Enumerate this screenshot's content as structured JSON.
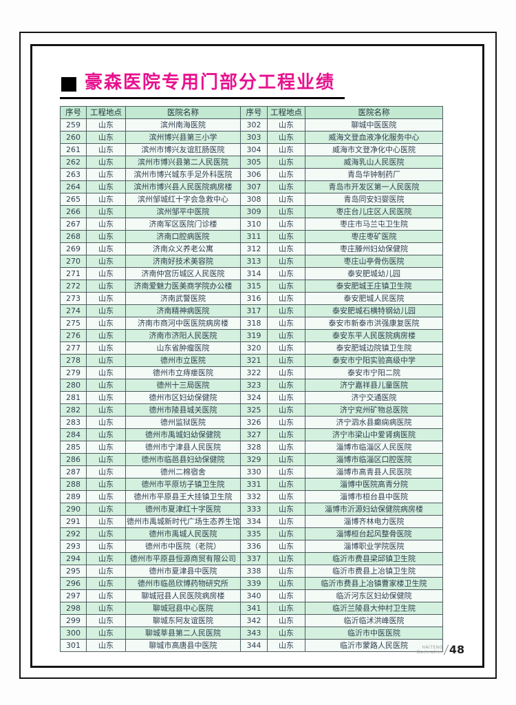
{
  "page": {
    "title": "豪森医院专用门部分工程业绩",
    "footer_brand_line1": "HAITENG",
    "footer_brand_line2": "Decoration",
    "page_number": "48"
  },
  "colors": {
    "title_accent": "#e7118e",
    "header_bg": "#c3e9d2",
    "row_even_bg": "#d4f0de",
    "row_odd_bg": "#f4fbf7",
    "frame": "#141414"
  },
  "table": {
    "headers": [
      "序号",
      "工程地点",
      "医院名称"
    ],
    "left_rows": [
      {
        "no": "259",
        "loc": "山东",
        "name": "滨州南海医院"
      },
      {
        "no": "260",
        "loc": "山东",
        "name": "滨州博兴县第三小学"
      },
      {
        "no": "261",
        "loc": "山东",
        "name": "滨州市博兴友谊肛肠医院"
      },
      {
        "no": "262",
        "loc": "山东",
        "name": "滨州市博兴县第二人民医院"
      },
      {
        "no": "263",
        "loc": "山东",
        "name": "滨州市博兴城东手足外科医院"
      },
      {
        "no": "264",
        "loc": "山东",
        "name": "滨州市博兴县人民医院病房楼"
      },
      {
        "no": "265",
        "loc": "山东",
        "name": "滨州邹城红十字会急救中心"
      },
      {
        "no": "266",
        "loc": "山东",
        "name": "滨州邹平中医院"
      },
      {
        "no": "267",
        "loc": "山东",
        "name": "济南军区医院门诊楼"
      },
      {
        "no": "268",
        "loc": "山东",
        "name": "济南口腔病医院"
      },
      {
        "no": "269",
        "loc": "山东",
        "name": "济南众义养老公寓"
      },
      {
        "no": "270",
        "loc": "山东",
        "name": "济南好技术美容院"
      },
      {
        "no": "271",
        "loc": "山东",
        "name": "济南仲宫历城区人民医院"
      },
      {
        "no": "272",
        "loc": "山东",
        "name": "济南爱魅力医美商学院办公楼"
      },
      {
        "no": "273",
        "loc": "山东",
        "name": "济南武警医院"
      },
      {
        "no": "274",
        "loc": "山东",
        "name": "济南精神病医院"
      },
      {
        "no": "275",
        "loc": "山东",
        "name": "济南市商河中医医院病房楼"
      },
      {
        "no": "276",
        "loc": "山东",
        "name": "济南市济阳人民医院"
      },
      {
        "no": "277",
        "loc": "山东",
        "name": "山东省肿瘤医院"
      },
      {
        "no": "278",
        "loc": "山东",
        "name": "德州市立医院"
      },
      {
        "no": "279",
        "loc": "山东",
        "name": "德州市立痔瘘医院"
      },
      {
        "no": "280",
        "loc": "山东",
        "name": "德州十三局医院"
      },
      {
        "no": "281",
        "loc": "山东",
        "name": "德州市区妇幼保健院"
      },
      {
        "no": "282",
        "loc": "山东",
        "name": "德州市陵县城关医院"
      },
      {
        "no": "283",
        "loc": "山东",
        "name": "德州监狱医院"
      },
      {
        "no": "284",
        "loc": "山东",
        "name": "德州市禹城妇幼保健院"
      },
      {
        "no": "285",
        "loc": "山东",
        "name": "德州市宁津县人民医院"
      },
      {
        "no": "286",
        "loc": "山东",
        "name": "德州市临邑县妇幼保健院"
      },
      {
        "no": "287",
        "loc": "山东",
        "name": "德州二棉宿舍"
      },
      {
        "no": "288",
        "loc": "山东",
        "name": "德州市平原坊子镇卫生院"
      },
      {
        "no": "289",
        "loc": "山东",
        "name": "德州市平原县王大挂镇卫生院"
      },
      {
        "no": "290",
        "loc": "山东",
        "name": "德州市夏津红十字医院"
      },
      {
        "no": "291",
        "loc": "山东",
        "name": "德州市禹城新时代广场生态养生馆"
      },
      {
        "no": "292",
        "loc": "山东",
        "name": "德州市禹城人民医院"
      },
      {
        "no": "293",
        "loc": "山东",
        "name": "德州市中医院（老院）"
      },
      {
        "no": "294",
        "loc": "山东",
        "name": "德州市平原县恒源商贸有限公司"
      },
      {
        "no": "295",
        "loc": "山东",
        "name": "德州市夏津县中医院"
      },
      {
        "no": "296",
        "loc": "山东",
        "name": "德州市临邑欣博药物研究所"
      },
      {
        "no": "297",
        "loc": "山东",
        "name": "聊城冠县人民医院病房楼"
      },
      {
        "no": "298",
        "loc": "山东",
        "name": "聊城冠县中心医院"
      },
      {
        "no": "299",
        "loc": "山东",
        "name": "聊城东阿友谊医院"
      },
      {
        "no": "300",
        "loc": "山东",
        "name": "聊城莘县第二人民医院"
      },
      {
        "no": "301",
        "loc": "山东",
        "name": "聊城市高唐县中医院"
      }
    ],
    "right_rows": [
      {
        "no": "302",
        "loc": "山东",
        "name": "聊城中医医院"
      },
      {
        "no": "303",
        "loc": "山东",
        "name": "威海文登血液净化服务中心"
      },
      {
        "no": "304",
        "loc": "山东",
        "name": "威海市文登净化中心医院"
      },
      {
        "no": "305",
        "loc": "山东",
        "name": "威海乳山人民医院"
      },
      {
        "no": "306",
        "loc": "山东",
        "name": "青岛华钟制药厂"
      },
      {
        "no": "307",
        "loc": "山东",
        "name": "青岛市开发区第一人民医院"
      },
      {
        "no": "308",
        "loc": "山东",
        "name": "青岛同安妇婴医院"
      },
      {
        "no": "309",
        "loc": "山东",
        "name": "枣庄台儿庄区人民医院"
      },
      {
        "no": "310",
        "loc": "山东",
        "name": "枣庄市马兰屯卫生院"
      },
      {
        "no": "311",
        "loc": "山东",
        "name": "枣庄枣矿医院"
      },
      {
        "no": "312",
        "loc": "山东",
        "name": "枣庄滕州妇幼保健院"
      },
      {
        "no": "313",
        "loc": "山东",
        "name": "枣庄山亭骨伤医院"
      },
      {
        "no": "314",
        "loc": "山东",
        "name": "泰安肥城幼儿园"
      },
      {
        "no": "315",
        "loc": "山东",
        "name": "泰安肥城王庄镇卫生院"
      },
      {
        "no": "316",
        "loc": "山东",
        "name": "泰安肥城人民医院"
      },
      {
        "no": "317",
        "loc": "山东",
        "name": "泰安肥城石横特钢幼儿园"
      },
      {
        "no": "318",
        "loc": "山东",
        "name": "泰安市新泰市洪强康复医院"
      },
      {
        "no": "319",
        "loc": "山东",
        "name": "泰安东平人民医院病房楼"
      },
      {
        "no": "320",
        "loc": "山东",
        "name": "泰安肥城边院镇卫生院"
      },
      {
        "no": "321",
        "loc": "山东",
        "name": "泰安市宁阳实验高级中学"
      },
      {
        "no": "322",
        "loc": "山东",
        "name": "泰安市宁阳二院"
      },
      {
        "no": "323",
        "loc": "山东",
        "name": "济宁嘉祥县儿童医院"
      },
      {
        "no": "324",
        "loc": "山东",
        "name": "济宁交通医院"
      },
      {
        "no": "325",
        "loc": "山东",
        "name": "济宁兖州矿物总医院"
      },
      {
        "no": "326",
        "loc": "山东",
        "name": "济宁泗水县癫痫病医院"
      },
      {
        "no": "327",
        "loc": "山东",
        "name": "济宁市梁山中爱肾病医院"
      },
      {
        "no": "328",
        "loc": "山东",
        "name": "淄博市临淄区人民医院"
      },
      {
        "no": "329",
        "loc": "山东",
        "name": "淄博市临淄区口腔医院"
      },
      {
        "no": "330",
        "loc": "山东",
        "name": "淄博市高青县人民医院"
      },
      {
        "no": "331",
        "loc": "山东",
        "name": "淄博中医院高青分院"
      },
      {
        "no": "332",
        "loc": "山东",
        "name": "淄博市桓台县中医院"
      },
      {
        "no": "333",
        "loc": "山东",
        "name": "淄博市沂源妇幼保健院病房楼"
      },
      {
        "no": "334",
        "loc": "山东",
        "name": "淄博齐林电力医院"
      },
      {
        "no": "335",
        "loc": "山东",
        "name": "淄博桓台起风整骨医院"
      },
      {
        "no": "336",
        "loc": "山东",
        "name": "淄博职业学院医院"
      },
      {
        "no": "337",
        "loc": "山东",
        "name": "临沂市费县梁邱镇卫生院"
      },
      {
        "no": "338",
        "loc": "山东",
        "name": "临沂市费县上冶镇卫生院"
      },
      {
        "no": "339",
        "loc": "山东",
        "name": "临沂市费县上冶镇曹家楼卫生院"
      },
      {
        "no": "340",
        "loc": "山东",
        "name": "临沂河东区妇幼保健院"
      },
      {
        "no": "341",
        "loc": "山东",
        "name": "临沂兰陵县大仲村卫生院"
      },
      {
        "no": "342",
        "loc": "山东",
        "name": "临沂临沭洪峰医院"
      },
      {
        "no": "343",
        "loc": "山东",
        "name": "临沂市中医医院"
      },
      {
        "no": "344",
        "loc": "山东",
        "name": "临沂市蒙路人民医院"
      }
    ]
  }
}
